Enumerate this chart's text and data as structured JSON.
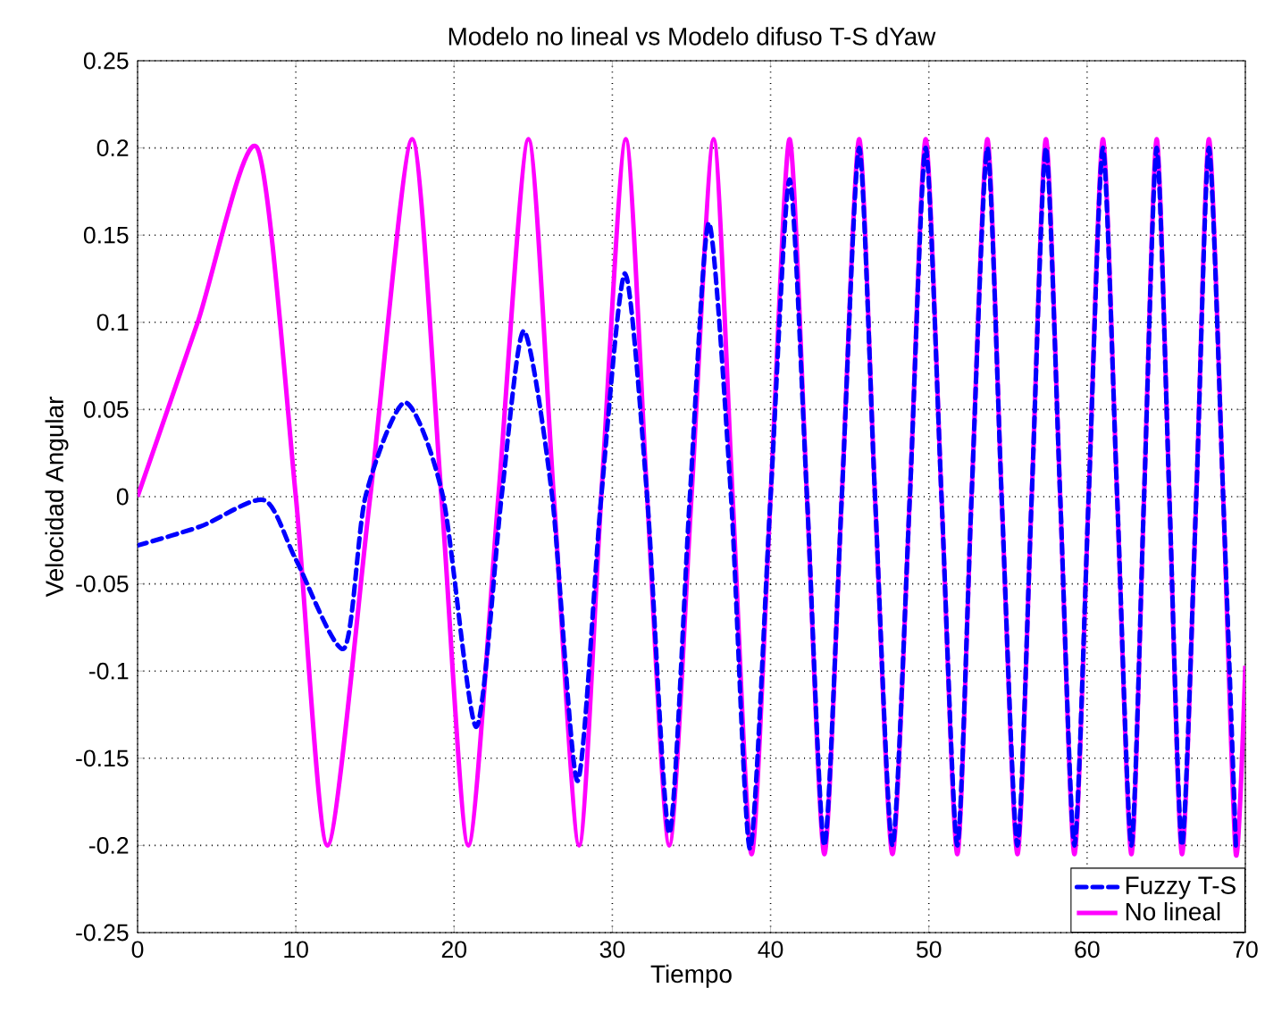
{
  "chart_data": {
    "type": "line",
    "title": "Modelo no lineal vs Modelo difuso T-S dYaw",
    "xlabel": "Tiempo",
    "ylabel": "Velocidad Angular",
    "xlim": [
      0,
      70
    ],
    "ylim": [
      -0.25,
      0.25
    ],
    "xticks": [
      0,
      10,
      20,
      30,
      40,
      50,
      60,
      70
    ],
    "yticks": [
      -0.25,
      -0.2,
      -0.15,
      -0.1,
      -0.05,
      0,
      0.05,
      0.1,
      0.15,
      0.2,
      0.25
    ],
    "grid": true,
    "legend": "bottom right",
    "marker": "none",
    "series": [
      {
        "name": "Fuzzy T-S",
        "color": "#0000ff",
        "line_style": "dashed",
        "x": [
          0,
          4,
          8.0,
          10,
          13.05,
          14.4,
          16.9,
          19.3,
          21.4,
          23.0,
          24.4,
          26.2,
          27.8,
          29.3,
          30.8,
          32.2,
          33.6,
          34.9,
          36.1,
          37.5,
          38.7,
          40.0,
          41.2,
          42.3,
          43.4,
          44.5,
          45.6,
          46.6,
          47.7,
          48.8,
          49.8,
          50.8,
          51.8,
          52.7,
          53.7,
          54.6,
          55.6,
          56.5,
          57.4,
          58.3,
          59.2,
          60.1,
          61.0,
          61.9,
          62.8,
          63.6,
          64.4,
          65.2,
          66.0,
          66.9,
          67.7,
          68.6,
          69.4
        ],
        "values": [
          -0.028,
          -0.017,
          -0.002,
          -0.036,
          -0.087,
          0,
          0.054,
          0,
          -0.132,
          0,
          0.095,
          0,
          -0.163,
          0,
          0.128,
          0,
          -0.193,
          0,
          0.157,
          0,
          -0.202,
          0,
          0.182,
          0,
          -0.2,
          0,
          0.2,
          0,
          -0.2,
          0,
          0.2,
          0,
          -0.2,
          0,
          0.2,
          0,
          -0.2,
          0,
          0.2,
          0,
          -0.2,
          0,
          0.2,
          0,
          -0.2,
          0,
          0.2,
          0,
          -0.2,
          0,
          0.2,
          0,
          -0.2
        ]
      },
      {
        "name": "No lineal",
        "color": "#ff00ff",
        "line_style": "solid",
        "x": [
          0,
          3.8,
          7.56,
          10.0,
          12.0,
          14.7,
          17.35,
          19.2,
          20.9,
          22.8,
          24.7,
          26.3,
          27.9,
          29.3,
          30.85,
          32.2,
          33.6,
          35.0,
          36.4,
          37.6,
          38.8,
          40.0,
          41.2,
          42.3,
          43.4,
          44.5,
          45.6,
          46.6,
          47.7,
          48.8,
          49.8,
          50.8,
          51.8,
          52.7,
          53.7,
          54.6,
          55.6,
          56.5,
          57.4,
          58.3,
          59.2,
          60.1,
          61.0,
          61.9,
          62.8,
          63.6,
          64.4,
          65.2,
          66.0,
          66.9,
          67.7,
          68.6,
          69.4,
          70
        ],
        "values": [
          0,
          0.1,
          0.2,
          0,
          -0.2,
          0,
          0.205,
          0,
          -0.2,
          0,
          0.205,
          0,
          -0.2,
          0,
          0.205,
          0,
          -0.2,
          0,
          0.205,
          0,
          -0.205,
          0,
          0.205,
          0,
          -0.205,
          0,
          0.205,
          0,
          -0.205,
          0,
          0.205,
          0,
          -0.205,
          0,
          0.205,
          0,
          -0.205,
          0,
          0.205,
          0,
          -0.205,
          0,
          0.205,
          0,
          -0.205,
          0,
          0.205,
          0,
          -0.205,
          0,
          0.205,
          0,
          -0.205,
          -0.097
        ]
      }
    ]
  }
}
